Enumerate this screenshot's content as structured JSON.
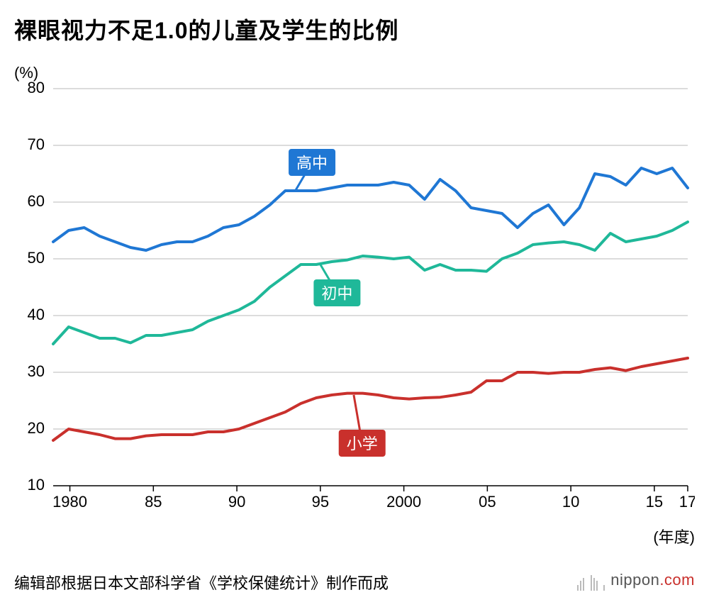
{
  "title": "裸眼视力不足1.0的儿童及学生的比例",
  "y_unit": "(%)",
  "x_unit": "(年度)",
  "source": "编辑部根据日本文部科学省《学校保健统计》制作而成",
  "logo": {
    "text1": "nippon",
    "text2": ".com"
  },
  "chart": {
    "type": "line",
    "background_color": "#ffffff",
    "grid_color": "#b8b8b8",
    "grid_width": 1,
    "axis_color": "#000000",
    "y": {
      "min": 10,
      "max": 80,
      "step": 10,
      "ticks": [
        10,
        20,
        30,
        40,
        50,
        60,
        70,
        80
      ]
    },
    "x": {
      "min": 1979,
      "max": 2017,
      "ticks": [
        1980,
        1985,
        1990,
        1995,
        2000,
        2005,
        2010,
        2015,
        2017
      ],
      "tick_labels": [
        "1980",
        "85",
        "90",
        "95",
        "2000",
        "05",
        "10",
        "15",
        "17"
      ]
    },
    "line_width": 4,
    "label_fontsize": 22,
    "axis_fontsize": 22,
    "series": [
      {
        "name": "高中",
        "color": "#1f77d4",
        "label_bg": "#1f77d4",
        "label_pos": {
          "x": 1994.5,
          "y": 67
        },
        "pointer_to": {
          "x": 1993.5,
          "y": 62
        },
        "values": [
          53,
          55,
          55.5,
          54,
          53,
          52,
          51.5,
          52.5,
          53,
          53,
          54,
          55.5,
          56,
          57.5,
          59.5,
          62,
          62,
          62,
          62.5,
          63,
          63,
          63,
          63.5,
          63,
          60.5,
          64,
          62,
          59,
          58.5,
          58,
          55.5,
          58,
          59.5,
          56,
          59,
          65,
          64.5,
          63,
          66,
          65,
          66,
          62.5
        ]
      },
      {
        "name": "初中",
        "color": "#1fb899",
        "label_bg": "#1fb899",
        "label_pos": {
          "x": 1996,
          "y": 44
        },
        "pointer_to": {
          "x": 1995,
          "y": 49
        },
        "values": [
          35,
          38,
          37,
          36,
          36,
          35.2,
          36.5,
          36.5,
          37,
          37.5,
          39,
          40,
          41,
          42.5,
          45,
          47,
          49,
          49,
          49.5,
          49.8,
          50.5,
          50.3,
          50,
          50.3,
          48,
          49,
          48,
          48,
          47.8,
          50,
          51,
          52.5,
          52.8,
          53,
          52.5,
          51.5,
          54.5,
          53,
          53.5,
          54,
          55,
          56.5
        ]
      },
      {
        "name": "小学",
        "color": "#c9302c",
        "label_bg": "#c9302c",
        "label_pos": {
          "x": 1997.5,
          "y": 17.5
        },
        "pointer_to": {
          "x": 1997,
          "y": 26
        },
        "values": [
          18,
          20,
          19.5,
          19,
          18.3,
          18.3,
          18.8,
          19,
          19,
          19,
          19.5,
          19.5,
          20,
          21,
          22,
          23,
          24.5,
          25.5,
          26,
          26.3,
          26.3,
          26,
          25.5,
          25.3,
          25.5,
          25.6,
          26,
          26.5,
          28.5,
          28.5,
          30,
          30,
          29.8,
          30,
          30,
          30.5,
          30.8,
          30.3,
          31,
          31.5,
          32,
          32.5
        ]
      }
    ]
  }
}
